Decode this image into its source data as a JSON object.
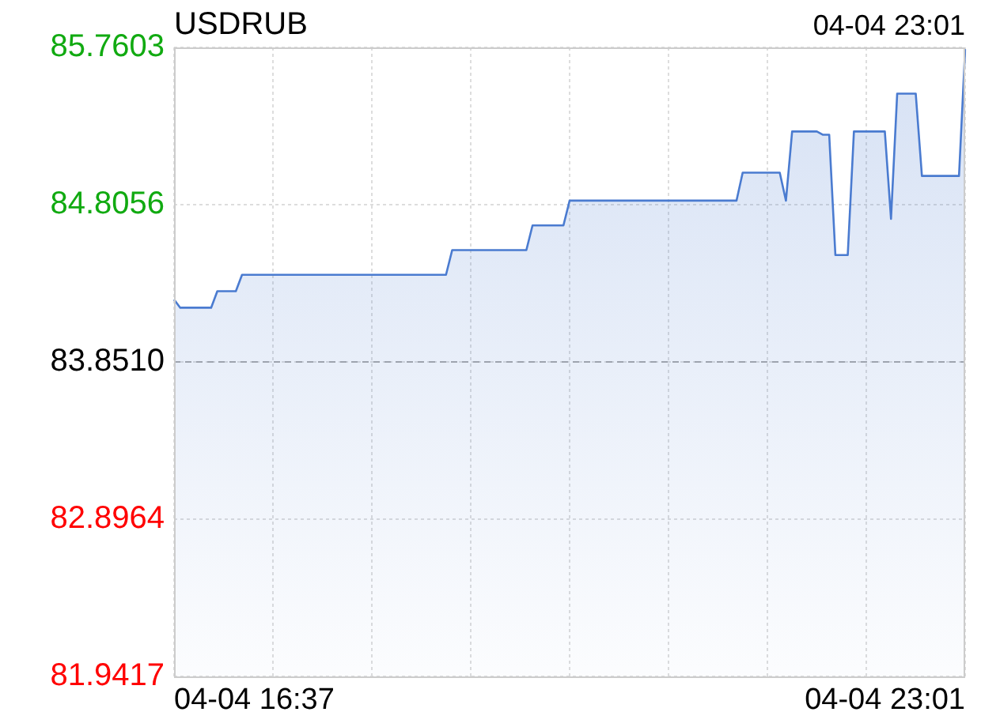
{
  "chart_data": {
    "type": "area",
    "title": "USDRUB",
    "annotations": [
      "04-04 23:01",
      "04-04 16:37",
      "04-04 23:01"
    ],
    "categories": [
      null,
      null,
      null,
      null,
      null,
      null,
      null,
      null,
      null,
      null,
      null,
      null,
      null,
      null,
      null,
      null,
      null,
      null,
      null,
      null,
      null,
      null,
      null,
      null,
      null,
      null,
      null,
      null,
      null,
      null,
      null,
      null,
      null,
      null,
      null,
      null,
      null,
      null,
      null,
      null,
      null,
      null,
      null,
      null,
      null,
      null,
      null,
      null,
      null,
      null,
      null,
      null,
      null,
      null,
      null,
      null,
      null,
      null,
      null,
      null,
      null,
      null,
      null,
      null,
      null,
      null,
      null,
      null,
      null,
      null,
      null,
      null,
      null,
      null,
      null,
      null,
      null,
      null,
      null,
      null,
      null,
      null,
      null,
      null,
      null,
      null,
      null,
      null,
      null,
      null,
      null,
      null,
      null,
      null,
      null,
      null,
      null,
      null,
      null,
      null,
      null,
      null,
      null,
      null,
      null,
      null,
      null,
      null,
      null,
      null,
      null,
      null,
      null,
      null,
      null,
      null,
      null,
      null,
      null,
      null,
      null,
      null,
      null,
      null,
      null,
      null,
      null,
      null,
      null
    ],
    "ylim": [
      81.9417,
      85.7603
    ],
    "yticks": [
      81.9417,
      82.8964,
      {
        "value": 83.851,
        "label": "83.8510"
      },
      84.8056,
      85.7603
    ],
    "grid": true,
    "ref_lines": [
      {
        "axis": "y",
        "value": 83.851,
        "color": "#aaaaaa",
        "line_style": "dashed"
      }
    ],
    "series": [
      {
        "color": "#4a7bd0",
        "values": [
          84.23,
          84.18,
          84.18,
          84.18,
          84.18,
          84.18,
          84.18,
          84.28,
          84.28,
          84.28,
          84.28,
          84.38,
          84.38,
          84.38,
          84.38,
          84.38,
          84.38,
          84.38,
          84.38,
          84.38,
          84.38,
          84.38,
          84.38,
          84.38,
          84.38,
          84.38,
          84.38,
          84.38,
          84.38,
          84.38,
          84.38,
          84.38,
          84.38,
          84.38,
          84.38,
          84.38,
          84.38,
          84.38,
          84.38,
          84.38,
          84.38,
          84.38,
          84.38,
          84.38,
          84.38,
          84.53,
          84.53,
          84.53,
          84.53,
          84.53,
          84.53,
          84.53,
          84.53,
          84.53,
          84.53,
          84.53,
          84.53,
          84.53,
          84.68,
          84.68,
          84.68,
          84.68,
          84.68,
          84.68,
          84.83,
          84.83,
          84.83,
          84.83,
          84.83,
          84.83,
          84.83,
          84.83,
          84.83,
          84.83,
          84.83,
          84.83,
          84.83,
          84.83,
          84.83,
          84.83,
          84.83,
          84.83,
          84.83,
          84.83,
          84.83,
          84.83,
          84.83,
          84.83,
          84.83,
          84.83,
          84.83,
          84.83,
          85.0,
          85.0,
          85.0,
          85.0,
          85.0,
          85.0,
          85.0,
          84.83,
          85.25,
          85.25,
          85.25,
          85.25,
          85.25,
          85.23,
          85.23,
          84.5,
          84.5,
          84.5,
          85.25,
          85.25,
          85.25,
          85.25,
          85.25,
          85.25,
          84.72,
          85.48,
          85.48,
          85.48,
          85.48,
          84.98,
          84.98,
          84.98,
          84.98,
          84.98,
          84.98,
          84.98,
          85.75
        ]
      }
    ]
  }
}
